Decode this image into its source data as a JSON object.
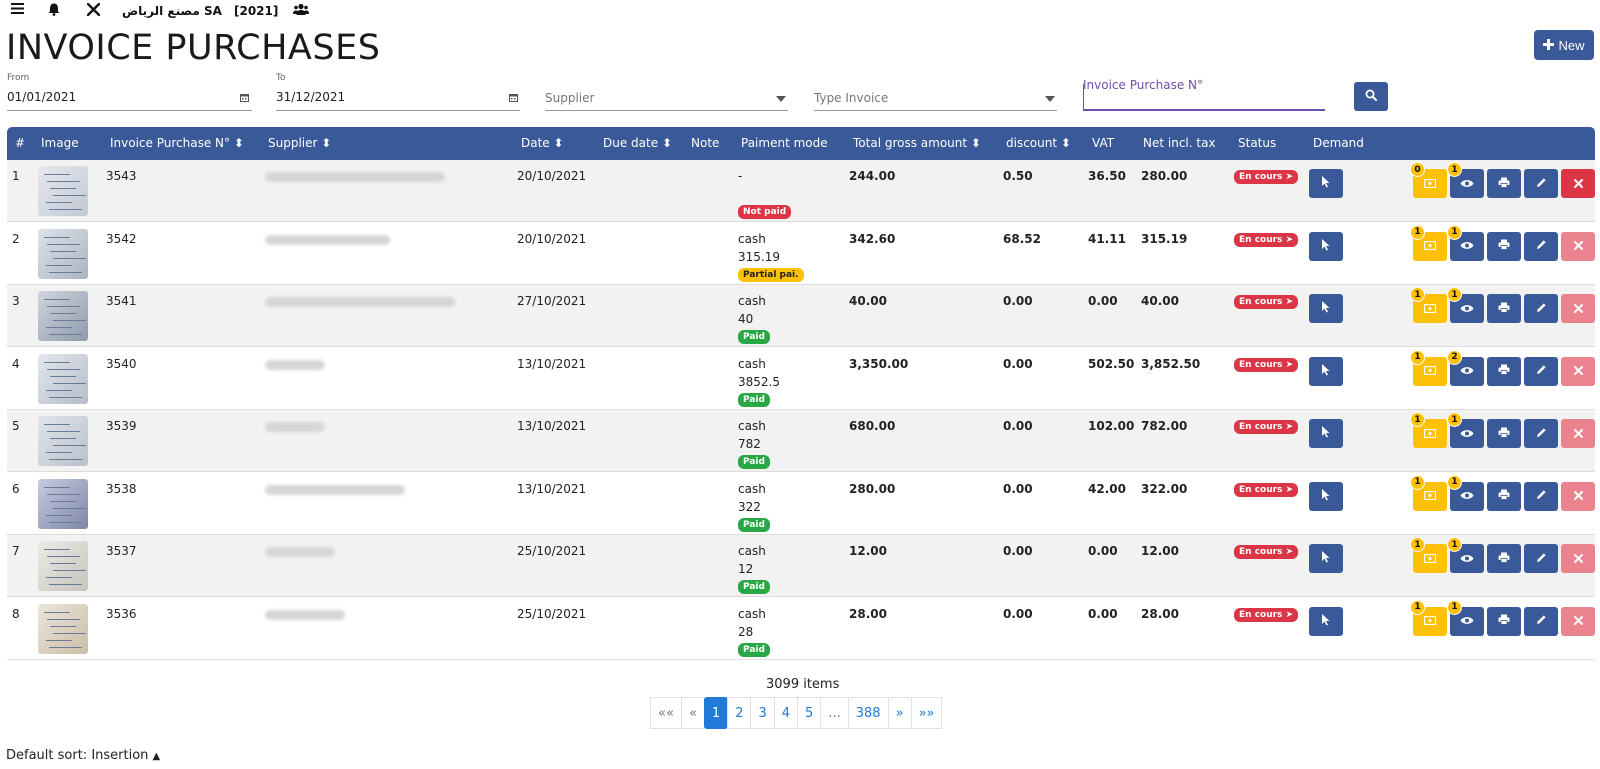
{
  "topbar": {
    "menu_icon": "hamburger-icon",
    "bell_icon": "bell-icon",
    "tools_icon": "tools-icon",
    "company": "مصنع الرياض SA",
    "year": "[2021]",
    "users_icon": "users-icon"
  },
  "page_title": "INVOICE PURCHASES",
  "new_button": "New",
  "filters": {
    "from_label": "From",
    "from_value": "01/01/2021",
    "to_label": "To",
    "to_value": "31/12/2021",
    "supplier_placeholder": "Supplier",
    "type_invoice_placeholder": "Type Invoice",
    "invoice_number_label": "Invoice Purchase N°"
  },
  "columns": [
    "#",
    "Image",
    "Invoice Purchase N°",
    "Supplier",
    "Date",
    "Due date",
    "Note",
    "Paiment mode",
    "Total gross amount",
    "discount",
    "VAT",
    "Net incl. tax",
    "Status",
    "Demand"
  ],
  "rows": [
    {
      "num": "1",
      "invoice": "3543",
      "date": "20/10/2021",
      "pay_mode": "-",
      "pay_amount": "",
      "pay_status": "Not paid",
      "pay_color": "red",
      "gross": "244.00",
      "discount": "0.50",
      "vat": "36.50",
      "net": "280.00",
      "status": "En cours",
      "attach_count": "0",
      "view_count": "1",
      "delete_active": true
    },
    {
      "num": "2",
      "invoice": "3542",
      "date": "20/10/2021",
      "pay_mode": "cash",
      "pay_amount": "315.19",
      "pay_status": "Partial pai.",
      "pay_color": "yellow",
      "gross": "342.60",
      "discount": "68.52",
      "vat": "41.11",
      "net": "315.19",
      "status": "En cours",
      "attach_count": "1",
      "view_count": "1",
      "delete_active": false
    },
    {
      "num": "3",
      "invoice": "3541",
      "date": "27/10/2021",
      "pay_mode": "cash",
      "pay_amount": "40",
      "pay_status": "Paid",
      "pay_color": "green",
      "gross": "40.00",
      "discount": "0.00",
      "vat": "0.00",
      "net": "40.00",
      "status": "En cours",
      "attach_count": "1",
      "view_count": "1",
      "delete_active": false
    },
    {
      "num": "4",
      "invoice": "3540",
      "date": "13/10/2021",
      "pay_mode": "cash",
      "pay_amount": "3852.5",
      "pay_status": "Paid",
      "pay_color": "green",
      "gross": "3,350.00",
      "discount": "0.00",
      "vat": "502.50",
      "net": "3,852.50",
      "status": "En cours",
      "attach_count": "1",
      "view_count": "2",
      "delete_active": false
    },
    {
      "num": "5",
      "invoice": "3539",
      "date": "13/10/2021",
      "pay_mode": "cash",
      "pay_amount": "782",
      "pay_status": "Paid",
      "pay_color": "green",
      "gross": "680.00",
      "discount": "0.00",
      "vat": "102.00",
      "net": "782.00",
      "status": "En cours",
      "attach_count": "1",
      "view_count": "1",
      "delete_active": false
    },
    {
      "num": "6",
      "invoice": "3538",
      "date": "13/10/2021",
      "pay_mode": "cash",
      "pay_amount": "322",
      "pay_status": "Paid",
      "pay_color": "green",
      "gross": "280.00",
      "discount": "0.00",
      "vat": "42.00",
      "net": "322.00",
      "status": "En cours",
      "attach_count": "1",
      "view_count": "1",
      "delete_active": false
    },
    {
      "num": "7",
      "invoice": "3537",
      "date": "25/10/2021",
      "pay_mode": "cash",
      "pay_amount": "12",
      "pay_status": "Paid",
      "pay_color": "green",
      "gross": "12.00",
      "discount": "0.00",
      "vat": "0.00",
      "net": "12.00",
      "status": "En cours",
      "attach_count": "1",
      "view_count": "1",
      "delete_active": false
    },
    {
      "num": "8",
      "invoice": "3536",
      "date": "25/10/2021",
      "pay_mode": "cash",
      "pay_amount": "28",
      "pay_status": "Paid",
      "pay_color": "green",
      "gross": "28.00",
      "discount": "0.00",
      "vat": "0.00",
      "net": "28.00",
      "status": "En cours",
      "attach_count": "1",
      "view_count": "1",
      "delete_active": false
    }
  ],
  "footer": {
    "items_count": "3099 items",
    "pagination": [
      "««",
      "«",
      "1",
      "2",
      "3",
      "4",
      "5",
      "...",
      "388",
      "»",
      "»»"
    ],
    "active_page": "1",
    "sort_text": "Default sort: Insertion"
  },
  "colors": {
    "primary": "#3a5998",
    "warning": "#ffc107",
    "danger": "#dc3545",
    "success": "#28a745",
    "link": "#1f7ad8"
  }
}
